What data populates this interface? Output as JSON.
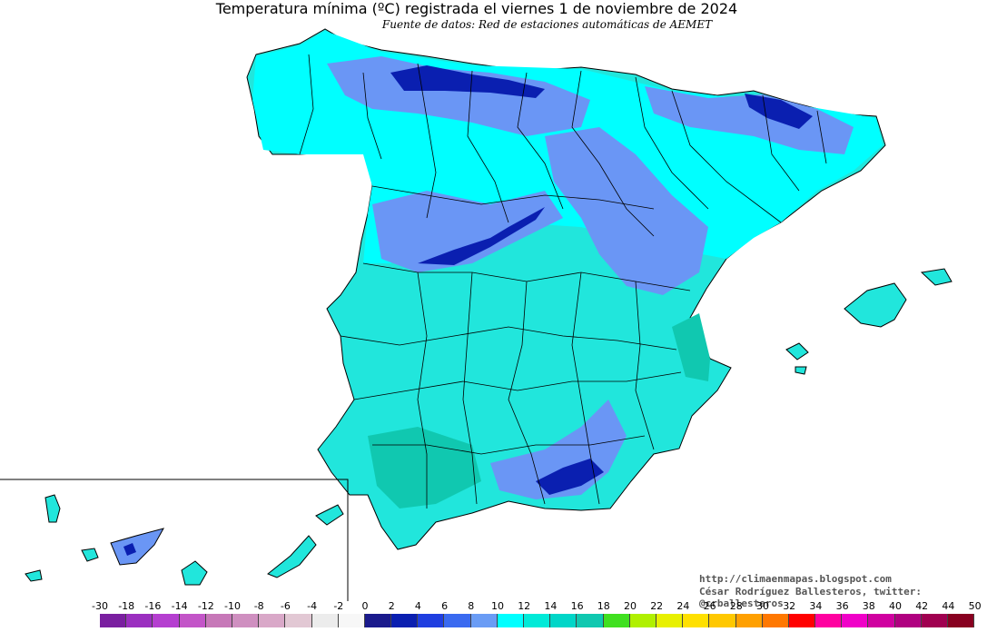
{
  "title": "Temperatura mínima (ºC) registrada el viernes 1 de noviembre de 2024",
  "subtitle": "Fuente de datos: Red de estaciones automáticas de AEMET",
  "credits": {
    "blog": "http://climaenmapas.blogspot.com",
    "author": "César Rodríguez Ballesteros, twitter: @crballesteros"
  },
  "legend": {
    "labels": [
      "-30",
      "-18",
      "-16",
      "-14",
      "-12",
      "-10",
      "-8",
      "-6",
      "-4",
      "-2",
      "0",
      "2",
      "4",
      "6",
      "8",
      "10",
      "12",
      "14",
      "16",
      "18",
      "20",
      "22",
      "24",
      "26",
      "28",
      "30",
      "32",
      "34",
      "36",
      "38",
      "40",
      "42",
      "44",
      "50"
    ],
    "colors": [
      "#7a1fa0",
      "#9b2fc0",
      "#b53fd0",
      "#c355c8",
      "#c778b8",
      "#cf8fc0",
      "#d9a8c8",
      "#e2c8d4",
      "#ececec",
      "#f7f7f7",
      "#1a1a8c",
      "#0a1fb0",
      "#1f3ee0",
      "#3a6af0",
      "#6a9cf5",
      "#00ffff",
      "#00ead8",
      "#00d6c8",
      "#10c8b0",
      "#40e020",
      "#b0f000",
      "#e8f000",
      "#ffe000",
      "#ffc800",
      "#ffa000",
      "#ff7800",
      "#ff0000",
      "#ff00a0",
      "#f000c8",
      "#d000a0",
      "#b00080",
      "#a00050",
      "#880020"
    ],
    "palette_colors": {
      "land_main": "#21e6dc",
      "land_cyan": "#00ffff",
      "land_blue": "#6a96f5",
      "land_dark": "#0a1fb0",
      "sea": "#ffffff",
      "border": "#000000"
    }
  }
}
